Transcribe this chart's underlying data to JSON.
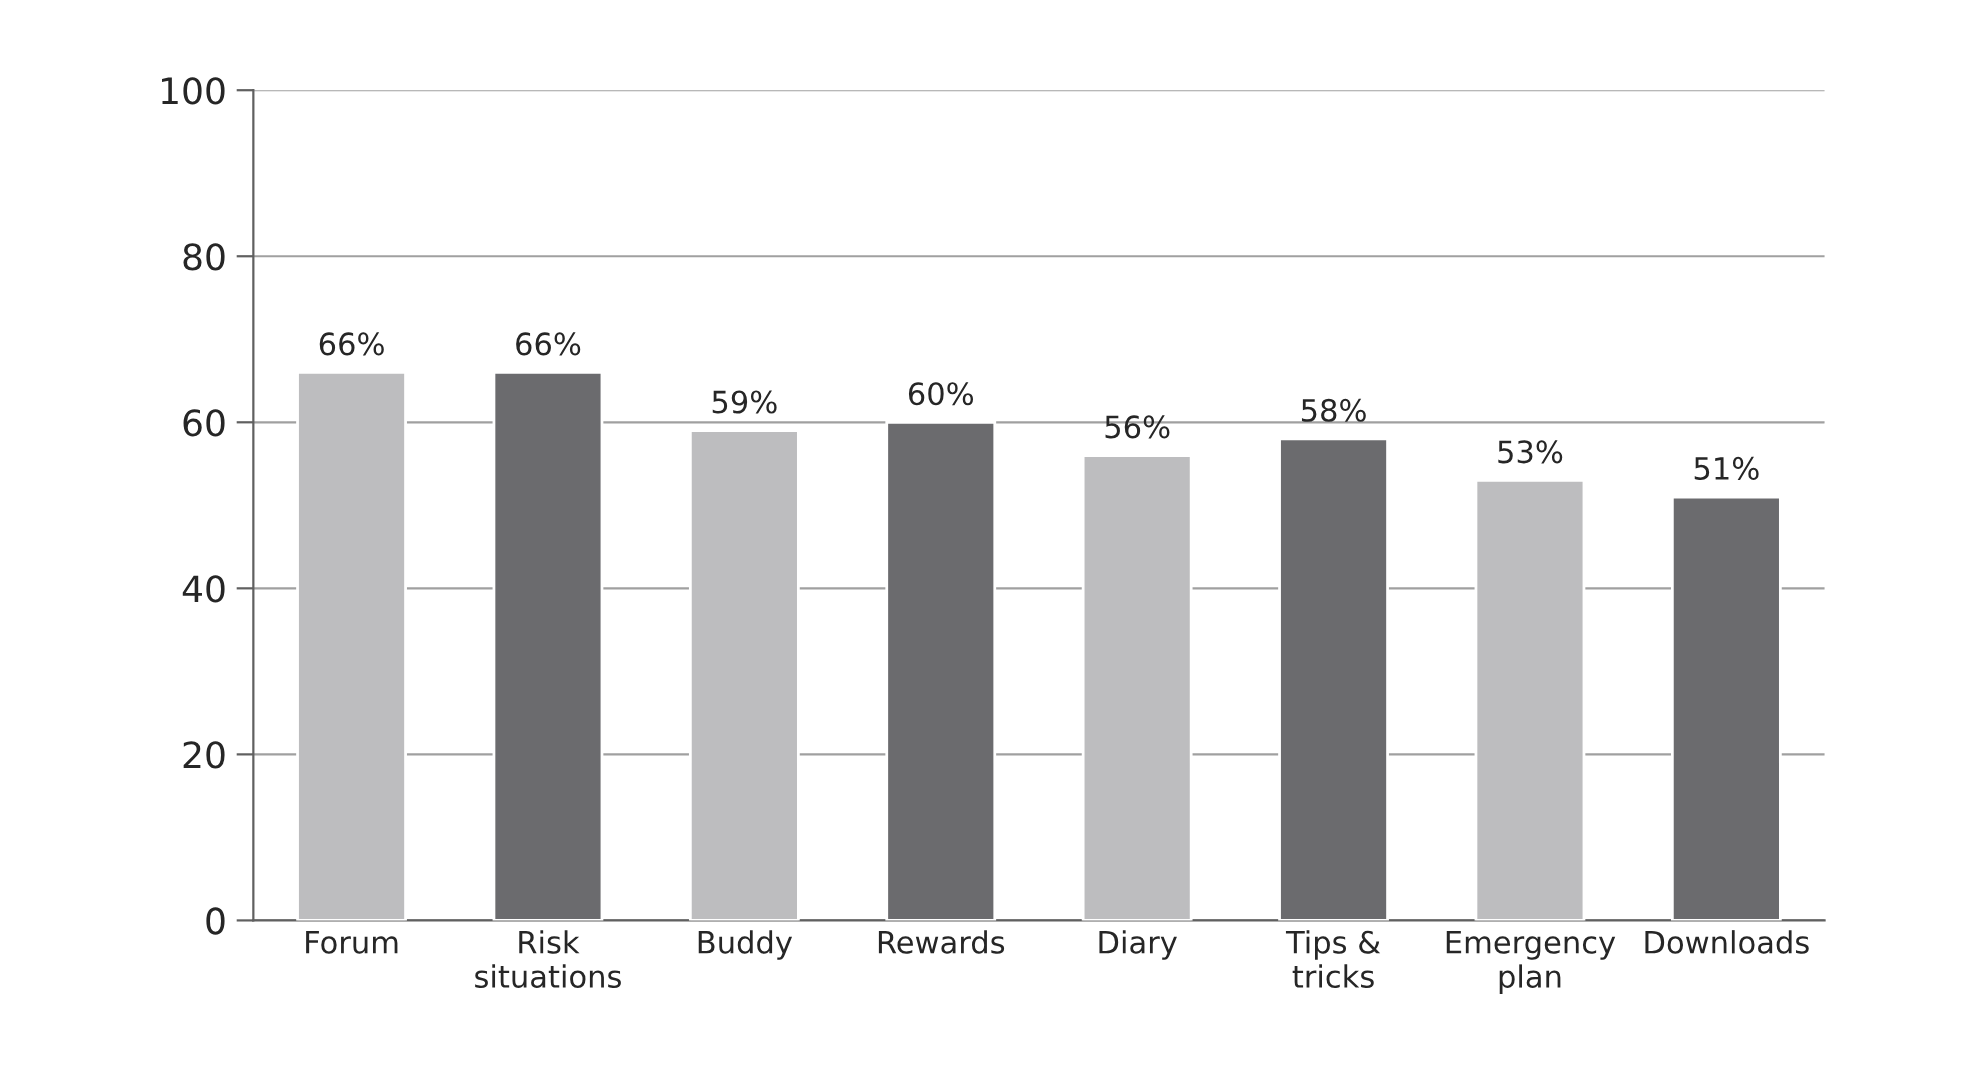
{
  "chart_data": {
    "type": "bar",
    "categories": [
      "Forum",
      "Risk\nsituations",
      "Buddy",
      "Rewards",
      "Diary",
      "Tips &\ntricks",
      "Emergency\nplan",
      "Downloads"
    ],
    "values": [
      66,
      66,
      59,
      60,
      56,
      58,
      53,
      51
    ],
    "colors": [
      "#bdbdbf",
      "#6b6b6e",
      "#bdbdbf",
      "#6b6b6e",
      "#bdbdbf",
      "#6b6b6e",
      "#bdbdbf",
      "#6b6b6e"
    ],
    "value_labels": [
      "66%",
      "66%",
      "59%",
      "60%",
      "56%",
      "58%",
      "53%",
      "51%"
    ],
    "ylim": [
      0,
      100
    ],
    "yticks": [
      0,
      20,
      40,
      60,
      80,
      100
    ],
    "grid": "y",
    "legend": false
  }
}
